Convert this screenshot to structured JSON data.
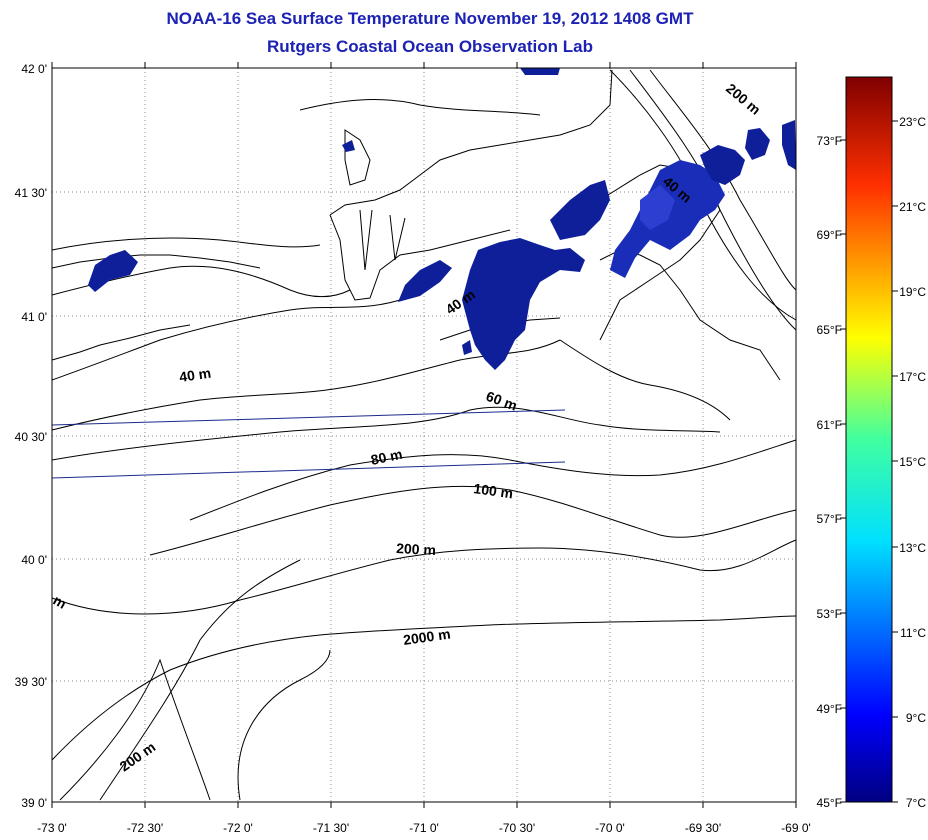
{
  "title": "NOAA-16 Sea Surface Temperature November 19, 2012 1408 GMT",
  "subtitle": "Rutgers Coastal Ocean Observation Lab",
  "map": {
    "x_ticks": [
      "-73 0'",
      "-72 30'",
      "-72 0'",
      "-71 30'",
      "-71 0'",
      "-70 30'",
      "-70 0'",
      "-69 30'",
      "-69 0'"
    ],
    "y_ticks": [
      "42 0'",
      "41 30'",
      "41 0'",
      "40 30'",
      "40 0'",
      "39 30'",
      "39 0'"
    ],
    "isobath_labels": [
      "40 m",
      "40 m",
      "60 m",
      "80 m",
      "100 m",
      "200 m",
      "2000 m",
      "200 m",
      "40 m",
      "200 m",
      "m"
    ],
    "colors": {
      "title": "#1c22b4",
      "sst_patch": "#0f1f9a",
      "sst_patch_light": "#2c3fd0",
      "track": "#1c2a8c"
    }
  },
  "colorbar": {
    "f_labels": [
      "73°F",
      "69°F",
      "65°F",
      "61°F",
      "57°F",
      "53°F",
      "49°F",
      "45°F"
    ],
    "c_labels": [
      "23°C",
      "21°C",
      "19°C",
      "17°C",
      "15°C",
      "13°C",
      "11°C",
      "9°C",
      "7°C"
    ]
  }
}
